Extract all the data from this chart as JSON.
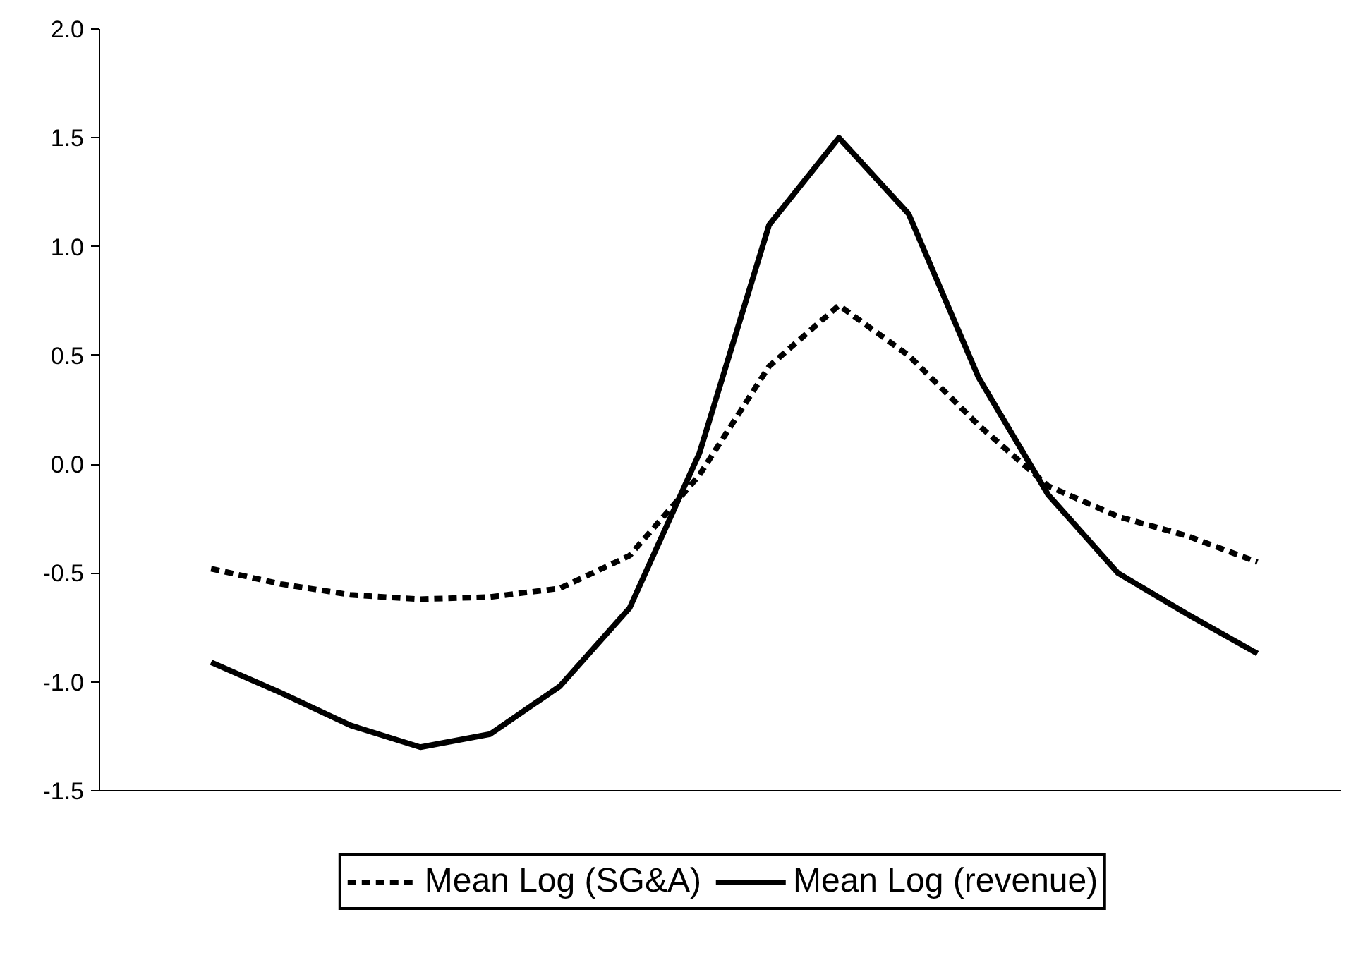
{
  "chart_data": {
    "type": "line",
    "categories": [
      null,
      null,
      null,
      null,
      null,
      null,
      null,
      null,
      null,
      null,
      null,
      null,
      null,
      null,
      null,
      null
    ],
    "series": [
      {
        "name": "Mean Log (SG&A)",
        "color": "#000000",
        "line_style": "dashed",
        "values": [
          -0.48,
          -0.55,
          -0.6,
          -0.62,
          -0.61,
          -0.57,
          -0.42,
          -0.05,
          0.45,
          0.73,
          0.5,
          0.18,
          -0.1,
          -0.24,
          -0.33,
          -0.45
        ]
      },
      {
        "name": "Mean Log (revenue)",
        "color": "#000000",
        "line_style": "solid",
        "values": [
          -0.91,
          -1.05,
          -1.2,
          -1.3,
          -1.24,
          -1.02,
          -0.66,
          0.05,
          1.1,
          1.5,
          1.15,
          0.4,
          -0.14,
          -0.5,
          -0.69,
          -0.87
        ]
      }
    ],
    "ylim": [
      -1.5,
      2.0
    ],
    "yticks": [
      -1.5,
      {
        "value": -1,
        "label": "-1.0"
      },
      -0.5,
      {
        "value": 0,
        "label": "0.0"
      },
      0.5,
      {
        "value": 1,
        "label": "1.0"
      },
      1.5,
      {
        "value": 2,
        "label": "2.0"
      }
    ],
    "tick_labels": "y",
    "grid": false,
    "legend": "bottom"
  }
}
